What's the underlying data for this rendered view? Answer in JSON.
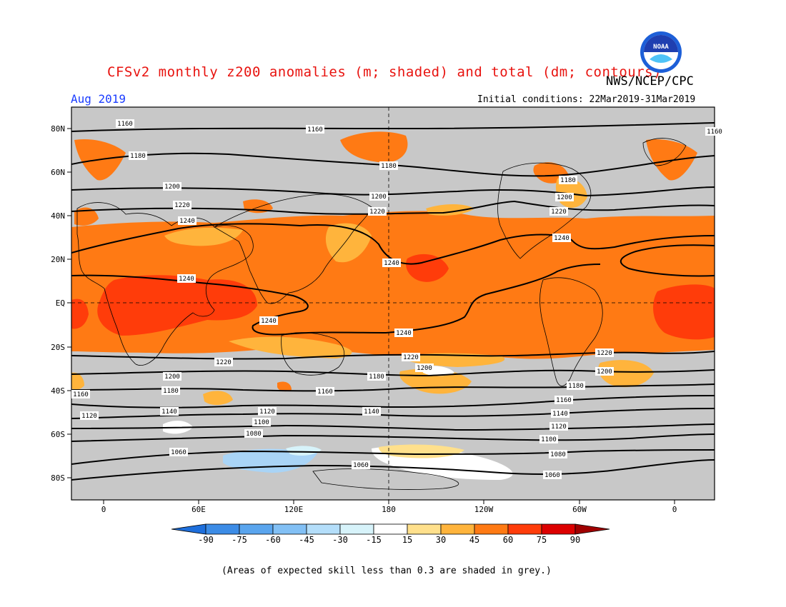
{
  "header": {
    "title": "CFSv2 monthly z200 anomalies (m; shaded) and total (dm; contours)",
    "org": "NWS/NCEP/CPC",
    "valid_month": "Aug 2019",
    "initial_conditions": "Initial conditions: 22Mar2019-31Mar2019",
    "logo_text": "NOAA"
  },
  "map": {
    "lat_labels": [
      "80N",
      "60N",
      "40N",
      "20N",
      "EQ",
      "20S",
      "40S",
      "60S",
      "80S"
    ],
    "lon_labels": [
      "0",
      "60E",
      "120E",
      "180",
      "120W",
      "60W",
      "0"
    ],
    "contour_labels": [
      "1160",
      "1160",
      "1160",
      "1180",
      "1180",
      "1180",
      "1200",
      "1200",
      "1200",
      "1220",
      "1220",
      "1220",
      "1240",
      "1240",
      "1240",
      "1240",
      "1240",
      "1240",
      "1220",
      "1220",
      "1220",
      "1200",
      "1200",
      "1200",
      "1180",
      "1180",
      "1180",
      "1160",
      "1160",
      "1160",
      "1140",
      "1140",
      "1140",
      "1120",
      "1120",
      "1120",
      "1100",
      "1100",
      "1080",
      "1080",
      "1060",
      "1060",
      "1060"
    ],
    "skill_mask_color": "#c8c8c8",
    "contour_color": "#000000"
  },
  "colorbar": {
    "ticks": [
      "-90",
      "-75",
      "-60",
      "-45",
      "-30",
      "-15",
      "15",
      "30",
      "45",
      "60",
      "75",
      "90"
    ],
    "colors": [
      "#1e6fdc",
      "#3c8ce6",
      "#5aa5ee",
      "#82c0f5",
      "#b4defa",
      "#d7f3fa",
      "#ffffff",
      "#ffe08c",
      "#ffb43c",
      "#ff7a14",
      "#ff3c0a",
      "#dc0000",
      "#a00000"
    ]
  },
  "footer": {
    "note": "(Areas of expected skill less than 0.3 are shaded in grey.)"
  }
}
